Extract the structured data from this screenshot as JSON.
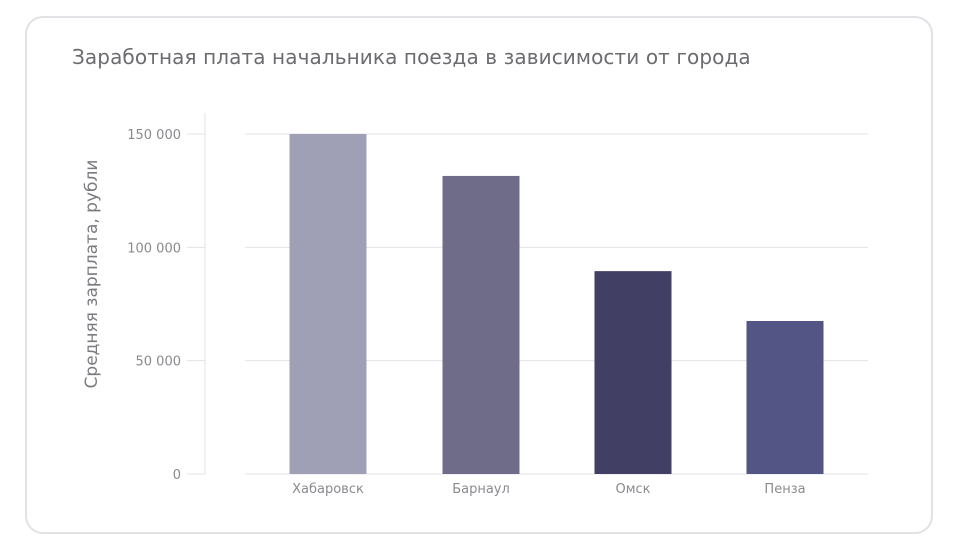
{
  "chart_data": {
    "type": "bar",
    "title": "Заработная плата начальника поезда в зависимости от города",
    "xlabel": "",
    "ylabel": "Средняя зарплата, рубли",
    "categories": [
      "Хабаровск",
      "Барнаул",
      "Омск",
      "Пенза"
    ],
    "values": [
      150000,
      131500,
      89500,
      67500
    ],
    "ylim": [
      0,
      150000
    ],
    "yticks": [
      0,
      50000,
      100000,
      150000
    ],
    "ytick_labels": [
      "0",
      "50 000",
      "100 000",
      "150 000"
    ],
    "grid": true,
    "legend": "none",
    "colors": [
      "#9fa0b5",
      "#6f6c89",
      "#413f63",
      "#535585"
    ]
  }
}
